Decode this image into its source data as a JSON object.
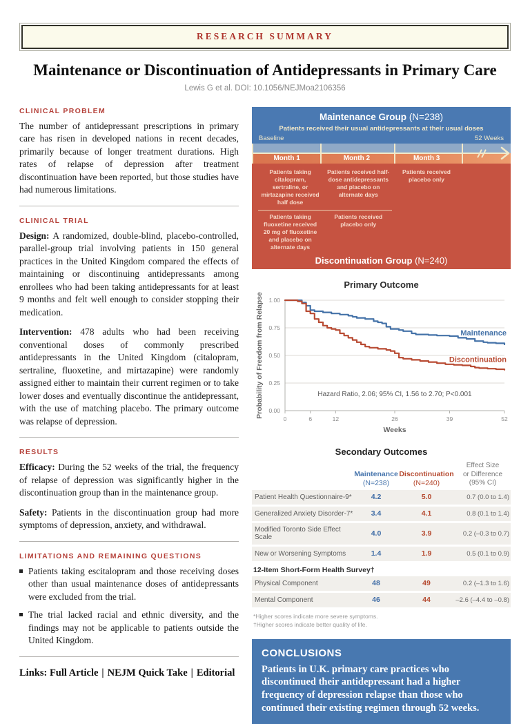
{
  "banner": {
    "label": "RESEARCH SUMMARY"
  },
  "header": {
    "title": "Maintenance or Discontinuation of Antidepressants in Primary Care",
    "byline": "Lewis G et al. DOI: 10.1056/NEJMoa2106356"
  },
  "left_column": {
    "clinical_problem": {
      "heading": "CLINICAL PROBLEM",
      "body": "The number of antidepressant prescriptions in primary care has risen in developed nations in recent decades, primarily because of longer treatment durations. High rates of relapse of depression after treatment discontinuation have been reported, but those studies have had numerous limitations."
    },
    "clinical_trial": {
      "heading": "CLINICAL TRIAL",
      "design_label": "Design:",
      "design_text": "A randomized, double-blind, placebo-controlled, parallel-group trial involving patients in 150 general practices in the United Kingdom compared the effects of maintaining or discontinuing antidepressants among enrollees who had been taking antidepressants for at least 9 months and felt well enough to consider stopping their medication.",
      "intervention_label": "Intervention:",
      "intervention_text": "478 adults who had been receiving conventional doses of commonly prescribed antidepressants in the United Kingdom (citalopram, sertraline, fluoxetine, and mirtazapine) were randomly assigned either to maintain their current regimen or to take lower doses and eventually discontinue the antidepressant, with the use of matching placebo. The primary outcome was relapse of depression."
    },
    "results": {
      "heading": "RESULTS",
      "efficacy_label": "Efficacy:",
      "efficacy_text": "During the 52 weeks of the trial, the frequency of relapse of depression was significantly higher in the discontinuation group than in the maintenance group.",
      "safety_label": "Safety:",
      "safety_text": "Patients in the discontinuation group had more symptoms of depression, anxiety, and withdrawal."
    },
    "limitations": {
      "heading": "LIMITATIONS AND REMAINING QUESTIONS",
      "bullets": [
        "Patients taking escitalopram and those receiving doses other than usual maintenance doses of antidepressants were excluded from the trial.",
        "The trial lacked racial and ethnic diversity, and the findings may not be applicable to patients outside the United Kingdom."
      ]
    }
  },
  "links": {
    "label": "Links:",
    "separator": "|",
    "items": [
      "Full Article",
      "NEJM Quick Take",
      "Editorial"
    ]
  },
  "diagram": {
    "maintenance_title": "Maintenance Group",
    "maintenance_n": "(N=238)",
    "subtitle": "Patients received their usual antidepressants at their usual doses",
    "baseline_label": "Baseline",
    "end_label": "52 Weeks",
    "months": [
      "Month 1",
      "Month 2",
      "Month 3"
    ],
    "row1_cells": [
      "Patients taking citalopram, sertraline, or mirtazapine received half dose",
      "Patients received half-dose antidepressants and placebo on alternate days",
      "Patients received placebo only"
    ],
    "row2_cells": [
      "Patients taking fluoxetine received 20 mg of fluoxetine and placebo on alternate days",
      "Patients received placebo only"
    ],
    "discontinuation_title": "Discontinuation Group",
    "discontinuation_n": "(N=240)"
  },
  "chart_data": {
    "type": "line",
    "subtype": "kaplan-meier-step",
    "title": "Primary Outcome",
    "xlabel": "Weeks",
    "ylabel": "Probability of Freedom from Relapse",
    "xlim": [
      0,
      52
    ],
    "ylim": [
      0,
      1
    ],
    "xticks": [
      0,
      6,
      12,
      26,
      39,
      52
    ],
    "yticks": [
      0,
      0.25,
      0.5,
      0.75,
      1
    ],
    "grid": "horizontal",
    "legend_position": "labels-on-lines-right",
    "annotation": "Hazard Ratio, 2.06; 95% CI, 1.56 to 2.70; P<0.001",
    "series": [
      {
        "name": "Maintenance",
        "color": "#4472a8",
        "label_at": [
          52,
          0.7
        ],
        "points": [
          [
            0,
            1
          ],
          [
            3,
            1
          ],
          [
            4,
            0.98
          ],
          [
            5,
            0.95
          ],
          [
            6,
            0.91
          ],
          [
            7,
            0.9
          ],
          [
            9,
            0.89
          ],
          [
            11,
            0.88
          ],
          [
            13,
            0.87
          ],
          [
            15,
            0.86
          ],
          [
            16,
            0.85
          ],
          [
            17,
            0.84
          ],
          [
            19,
            0.83
          ],
          [
            21,
            0.81
          ],
          [
            22,
            0.8
          ],
          [
            23,
            0.79
          ],
          [
            24,
            0.76
          ],
          [
            25,
            0.74
          ],
          [
            27,
            0.73
          ],
          [
            28,
            0.72
          ],
          [
            30,
            0.7
          ],
          [
            31,
            0.69
          ],
          [
            34,
            0.685
          ],
          [
            36,
            0.68
          ],
          [
            39,
            0.675
          ],
          [
            41,
            0.66
          ],
          [
            43,
            0.65
          ],
          [
            45,
            0.63
          ],
          [
            47,
            0.62
          ],
          [
            48,
            0.615
          ],
          [
            50,
            0.61
          ],
          [
            52,
            0.6
          ]
        ]
      },
      {
        "name": "Discontinuation",
        "color": "#b84a32",
        "label_at": [
          52,
          0.46
        ],
        "points": [
          [
            0,
            1
          ],
          [
            2,
            1
          ],
          [
            3,
            0.99
          ],
          [
            4,
            0.97
          ],
          [
            5,
            0.9
          ],
          [
            6,
            0.88
          ],
          [
            7,
            0.83
          ],
          [
            8,
            0.8
          ],
          [
            9,
            0.77
          ],
          [
            10,
            0.75
          ],
          [
            11,
            0.74
          ],
          [
            12,
            0.73
          ],
          [
            13,
            0.7
          ],
          [
            14,
            0.68
          ],
          [
            15,
            0.66
          ],
          [
            16,
            0.64
          ],
          [
            17,
            0.62
          ],
          [
            18,
            0.6
          ],
          [
            19,
            0.58
          ],
          [
            20,
            0.57
          ],
          [
            22,
            0.56
          ],
          [
            24,
            0.55
          ],
          [
            25,
            0.54
          ],
          [
            26,
            0.52
          ],
          [
            27,
            0.48
          ],
          [
            28,
            0.47
          ],
          [
            30,
            0.46
          ],
          [
            32,
            0.45
          ],
          [
            34,
            0.44
          ],
          [
            36,
            0.43
          ],
          [
            38,
            0.42
          ],
          [
            40,
            0.415
          ],
          [
            42,
            0.41
          ],
          [
            44,
            0.4
          ],
          [
            45,
            0.39
          ],
          [
            46,
            0.385
          ],
          [
            48,
            0.38
          ],
          [
            50,
            0.375
          ],
          [
            52,
            0.37
          ]
        ]
      }
    ]
  },
  "table": {
    "title": "Secondary Outcomes",
    "columns": {
      "maintenance": {
        "name": "Maintenance",
        "n": "(N=238)"
      },
      "discontinuation": {
        "name": "Discontinuation",
        "n": "(N=240)"
      },
      "effect": {
        "line1": "Effect Size",
        "line2": "or Difference",
        "line3": "(95% CI)"
      }
    },
    "rows": [
      {
        "label": "Patient Health Questionnaire-9*",
        "maintenance": "4.2",
        "discontinuation": "5.0",
        "effect": "0.7 (0.0 to 1.4)"
      },
      {
        "label": "Generalized Anxiety Disorder-7*",
        "maintenance": "3.4",
        "discontinuation": "4.1",
        "effect": "0.8 (0.1 to 1.4)"
      },
      {
        "label": "Modified Toronto Side Effect Scale",
        "maintenance": "4.0",
        "discontinuation": "3.9",
        "effect": "0.2 (–0.3 to 0.7)"
      },
      {
        "label": "New or Worsening Symptoms",
        "maintenance": "1.4",
        "discontinuation": "1.9",
        "effect": "0.5 (0.1 to 0.9)"
      }
    ],
    "subheader": "12-Item Short-Form Health Survey†",
    "sf12_rows": [
      {
        "label": "Physical Component",
        "maintenance": "48",
        "discontinuation": "49",
        "effect": "0.2 (–1.3 to 1.6)"
      },
      {
        "label": "Mental Component",
        "maintenance": "46",
        "discontinuation": "44",
        "effect": "–2.6 (–4.4 to –0.8)"
      }
    ],
    "footnotes": [
      "*Higher scores indicate more severe symptoms.",
      "†Higher scores indicate better quality of life."
    ]
  },
  "conclusions": {
    "heading": "CONCLUSIONS",
    "body": "Patients in U.K. primary care practices who discontinued their antidepressant had a higher frequency of depression relapse than those who continued their existing regimen through 52 weeks."
  }
}
